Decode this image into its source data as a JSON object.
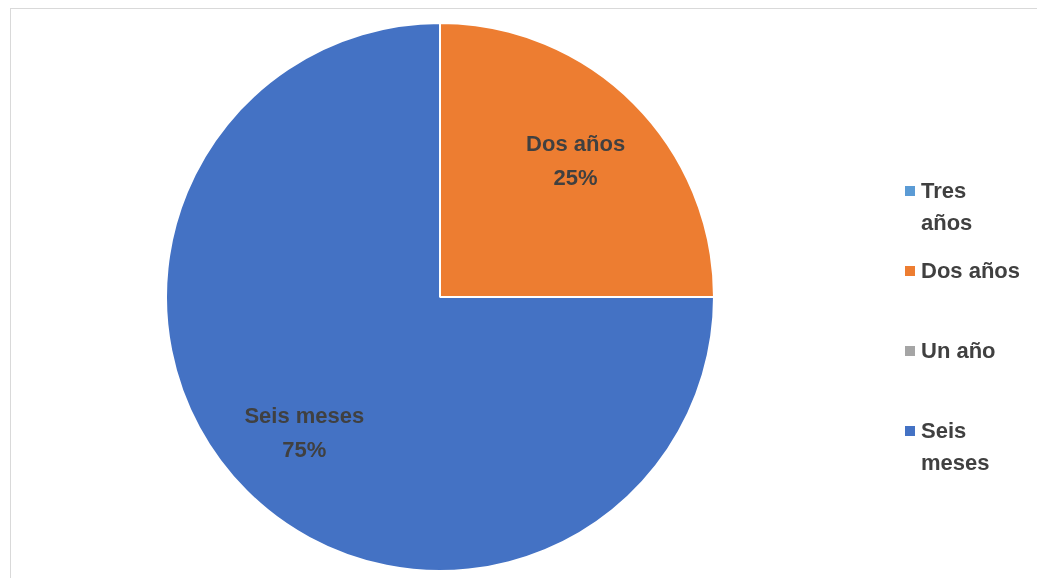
{
  "chart_data": {
    "type": "pie",
    "categories": [
      "Tres años",
      "Dos años",
      "Un año",
      "Seis meses"
    ],
    "values": [
      0,
      25,
      0,
      75
    ],
    "colors": [
      "#5b9bd5",
      "#ed7d31",
      "#a5a5a5",
      "#4472c4"
    ],
    "value_labels": [
      null,
      "25%",
      null,
      "75%"
    ],
    "legend": "right"
  }
}
